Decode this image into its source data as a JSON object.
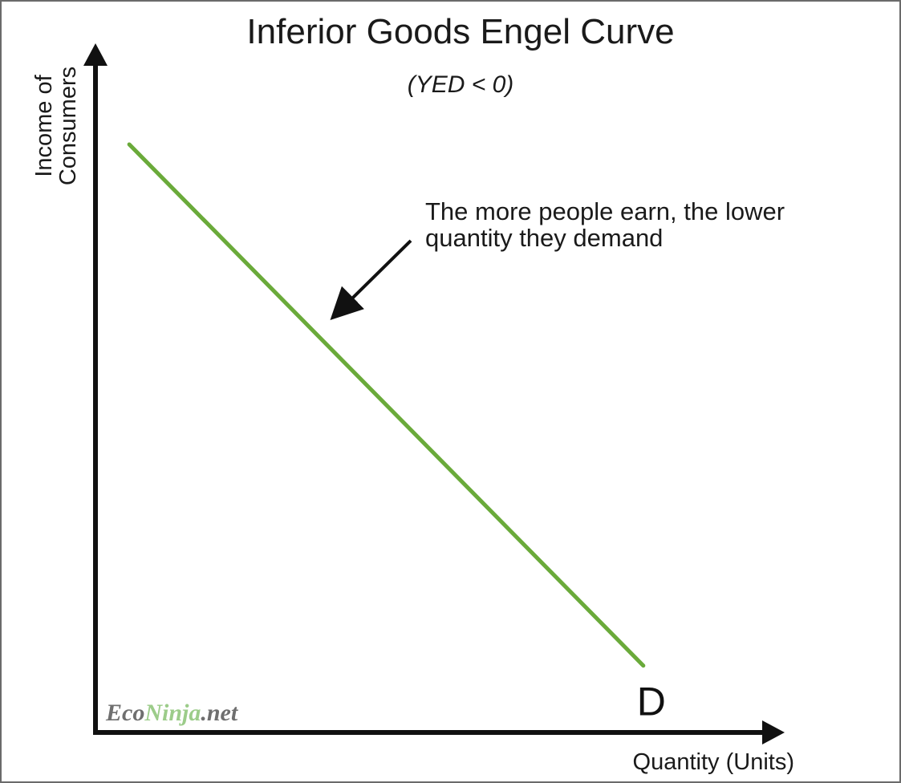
{
  "chart_data": {
    "type": "line",
    "title": "Inferior Goods Engel Curve",
    "subtitle": "(YED < 0)",
    "xlabel": "Quantity (Units)",
    "ylabel_line1": "Income of",
    "ylabel_line2": "Consumers",
    "grid": false,
    "xlim": [
      0,
      100
    ],
    "ylim": [
      0,
      100
    ],
    "series": [
      {
        "name": "D",
        "color": "#6aaa3a",
        "x": [
          5,
          81
        ],
        "y": [
          88,
          10
        ]
      }
    ],
    "annotation": {
      "line1": "The more people earn, the lower",
      "line2": "quantity they demand",
      "arrow_target": {
        "x": 35,
        "y": 62
      }
    }
  },
  "watermark": {
    "part1": "Eco",
    "part2": "Ninja",
    "part3": ".net",
    "color_dark": "#6f6f6f",
    "color_green": "#9ccc8a"
  },
  "colors": {
    "axis": "#111111",
    "curve": "#6aaa3a"
  }
}
